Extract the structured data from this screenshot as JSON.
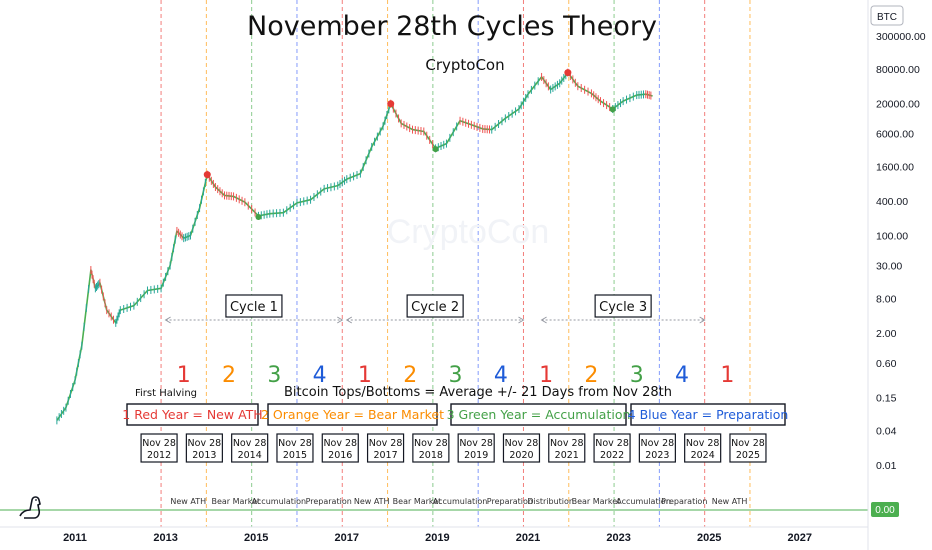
{
  "header": {
    "title": "November 28th Cycles Theory",
    "subtitle": "CryptoCon",
    "watermark": "CryptoCon",
    "price_axis_badge": "BTC",
    "current_value_badge": "0.00"
  },
  "annotations": {
    "first_halving": "First Halving",
    "rule": "Bitcoin Tops/Bottoms = Average +/- 21 Days from Nov 28th",
    "cycles": [
      {
        "label": "Cycle 1",
        "from": 2013.0,
        "to": 2016.9
      },
      {
        "label": "Cycle 2",
        "from": 2017.0,
        "to": 2020.9
      },
      {
        "label": "Cycle 3",
        "from": 2021.3,
        "to": 2024.9
      }
    ],
    "year_numbers": [
      {
        "text": "1",
        "year": 2013.4,
        "color": "#e53935"
      },
      {
        "text": "2",
        "year": 2014.4,
        "color": "#fb8c00"
      },
      {
        "text": "3",
        "year": 2015.4,
        "color": "#43a047"
      },
      {
        "text": "4",
        "year": 2016.4,
        "color": "#1e5bd8"
      },
      {
        "text": "1",
        "year": 2017.4,
        "color": "#e53935"
      },
      {
        "text": "2",
        "year": 2018.4,
        "color": "#fb8c00"
      },
      {
        "text": "3",
        "year": 2019.4,
        "color": "#43a047"
      },
      {
        "text": "4",
        "year": 2020.4,
        "color": "#1e5bd8"
      },
      {
        "text": "1",
        "year": 2021.4,
        "color": "#e53935"
      },
      {
        "text": "2",
        "year": 2022.4,
        "color": "#fb8c00"
      },
      {
        "text": "3",
        "year": 2023.4,
        "color": "#43a047"
      },
      {
        "text": "4",
        "year": 2024.4,
        "color": "#1e5bd8"
      },
      {
        "text": "1",
        "year": 2025.4,
        "color": "#e53935"
      }
    ],
    "legend": [
      {
        "text": "1 Red Year = New ATH",
        "color": "#e53935"
      },
      {
        "text": "2 Orange Year = Bear Market",
        "color": "#fb8c00"
      },
      {
        "text": "3 Green Year = Accumulation",
        "color": "#43a047"
      },
      {
        "text": "4 Blue Year = Preparation",
        "color": "#1e5bd8"
      }
    ],
    "date_boxes": [
      {
        "line1": "Nov 28",
        "line2": "2012",
        "year": 2012.9
      },
      {
        "line1": "Nov 28",
        "line2": "2013",
        "year": 2013.9
      },
      {
        "line1": "Nov 28",
        "line2": "2014",
        "year": 2014.9
      },
      {
        "line1": "Nov 28",
        "line2": "2015",
        "year": 2015.9
      },
      {
        "line1": "Nov 28",
        "line2": "2016",
        "year": 2016.9
      },
      {
        "line1": "Nov 28",
        "line2": "2017",
        "year": 2017.9
      },
      {
        "line1": "Nov 28",
        "line2": "2018",
        "year": 2018.9
      },
      {
        "line1": "Nov 28",
        "line2": "2019",
        "year": 2019.9
      },
      {
        "line1": "Nov 28",
        "line2": "2020",
        "year": 2020.9
      },
      {
        "line1": "Nov 28",
        "line2": "2021",
        "year": 2021.9
      },
      {
        "line1": "Nov 28",
        "line2": "2022",
        "year": 2022.9
      },
      {
        "line1": "Nov 28",
        "line2": "2023",
        "year": 2023.9
      },
      {
        "line1": "Nov 28",
        "line2": "2024",
        "year": 2024.9
      },
      {
        "line1": "Nov 28",
        "line2": "2025",
        "year": 2025.9
      }
    ],
    "phase_labels": [
      {
        "text": "New ATH",
        "year": 2013.5
      },
      {
        "text": "Bear Market",
        "year": 2014.55
      },
      {
        "text": "Accumulation",
        "year": 2015.5
      },
      {
        "text": "Preparation",
        "year": 2016.6
      },
      {
        "text": "New ATH",
        "year": 2017.55
      },
      {
        "text": "Bear Market",
        "year": 2018.55
      },
      {
        "text": "Accumulation",
        "year": 2019.5
      },
      {
        "text": "Preparation",
        "year": 2020.6
      },
      {
        "text": "Distribution",
        "year": 2021.5
      },
      {
        "text": "Bear Market",
        "year": 2022.5
      },
      {
        "text": "Accumulation",
        "year": 2023.55
      },
      {
        "text": "Preparation",
        "year": 2024.45
      },
      {
        "text": "New ATH",
        "year": 2025.45
      }
    ],
    "cycle_line_colors": [
      "#ef5350",
      "#ffa726",
      "#66bb6a",
      "#5c7cfa"
    ]
  },
  "chart_data": {
    "type": "line",
    "title": "November 28th Cycles Theory",
    "subtitle": "CryptoCon",
    "series": [
      {
        "x": [
          2010.6,
          2010.8,
          2011.0,
          2011.15,
          2011.35,
          2011.45,
          2011.55,
          2011.7,
          2011.9,
          2012.0,
          2012.3,
          2012.6,
          2012.9,
          2013.1,
          2013.25,
          2013.4,
          2013.55,
          2013.75,
          2013.92,
          2014.1,
          2014.3,
          2014.5,
          2014.75,
          2015.05,
          2015.3,
          2015.6,
          2015.9,
          2016.2,
          2016.5,
          2016.8,
          2017.0,
          2017.3,
          2017.55,
          2017.8,
          2017.97,
          2018.2,
          2018.45,
          2018.7,
          2018.96,
          2019.2,
          2019.5,
          2019.75,
          2020.0,
          2020.2,
          2020.5,
          2020.8,
          2021.0,
          2021.3,
          2021.5,
          2021.7,
          2021.88,
          2022.1,
          2022.4,
          2022.6,
          2022.87,
          2023.1,
          2023.4,
          2023.6,
          2023.75
        ],
        "values": [
          0.06,
          0.1,
          0.3,
          1.2,
          25,
          12,
          15,
          5,
          3,
          5,
          6,
          11,
          12,
          30,
          120,
          90,
          100,
          300,
          1150,
          700,
          500,
          480,
          380,
          220,
          240,
          250,
          370,
          420,
          650,
          740,
          960,
          1200,
          3500,
          8000,
          19800,
          9000,
          7000,
          6500,
          3300,
          4000,
          10000,
          8500,
          7200,
          7000,
          11000,
          16000,
          29000,
          58000,
          35000,
          45000,
          69000,
          40000,
          30000,
          22000,
          16000,
          22000,
          28000,
          29000,
          27000
        ]
      }
    ],
    "markers": [
      {
        "kind": "top",
        "x": 2013.92,
        "y": 1150,
        "color": "#e53935"
      },
      {
        "kind": "bottom",
        "x": 2015.05,
        "y": 210,
        "color": "#43a047"
      },
      {
        "kind": "top",
        "x": 2017.97,
        "y": 19800,
        "color": "#e53935"
      },
      {
        "kind": "bottom",
        "x": 2018.96,
        "y": 3200,
        "color": "#43a047"
      },
      {
        "kind": "top",
        "x": 2021.88,
        "y": 69000,
        "color": "#e53935"
      },
      {
        "kind": "bottom",
        "x": 2022.87,
        "y": 15800,
        "color": "#43a047"
      }
    ],
    "x_ticks": [
      2011,
      2013,
      2015,
      2017,
      2019,
      2021,
      2023,
      2025,
      2027
    ],
    "y_ticks": [
      {
        "label": "300000.00",
        "v": 300000
      },
      {
        "label": "80000.00",
        "v": 80000
      },
      {
        "label": "20000.00",
        "v": 20000
      },
      {
        "label": "6000.00",
        "v": 6000
      },
      {
        "label": "1600.00",
        "v": 1600
      },
      {
        "label": "400.00",
        "v": 400
      },
      {
        "label": "100.00",
        "v": 100
      },
      {
        "label": "30.00",
        "v": 30
      },
      {
        "label": "8.00",
        "v": 8
      },
      {
        "label": "2.00",
        "v": 2
      },
      {
        "label": "0.60",
        "v": 0.6
      },
      {
        "label": "0.15",
        "v": 0.15
      },
      {
        "label": "0.04",
        "v": 0.04
      },
      {
        "label": "0.01",
        "v": 0.01
      }
    ],
    "xlim": [
      2010.2,
      2027.9
    ],
    "ylim": [
      0.005,
      400000
    ],
    "y_scale": "log",
    "grid": false,
    "colors": {
      "up": "#26a69a",
      "down": "#ef5350",
      "line": "#4caf50"
    }
  }
}
